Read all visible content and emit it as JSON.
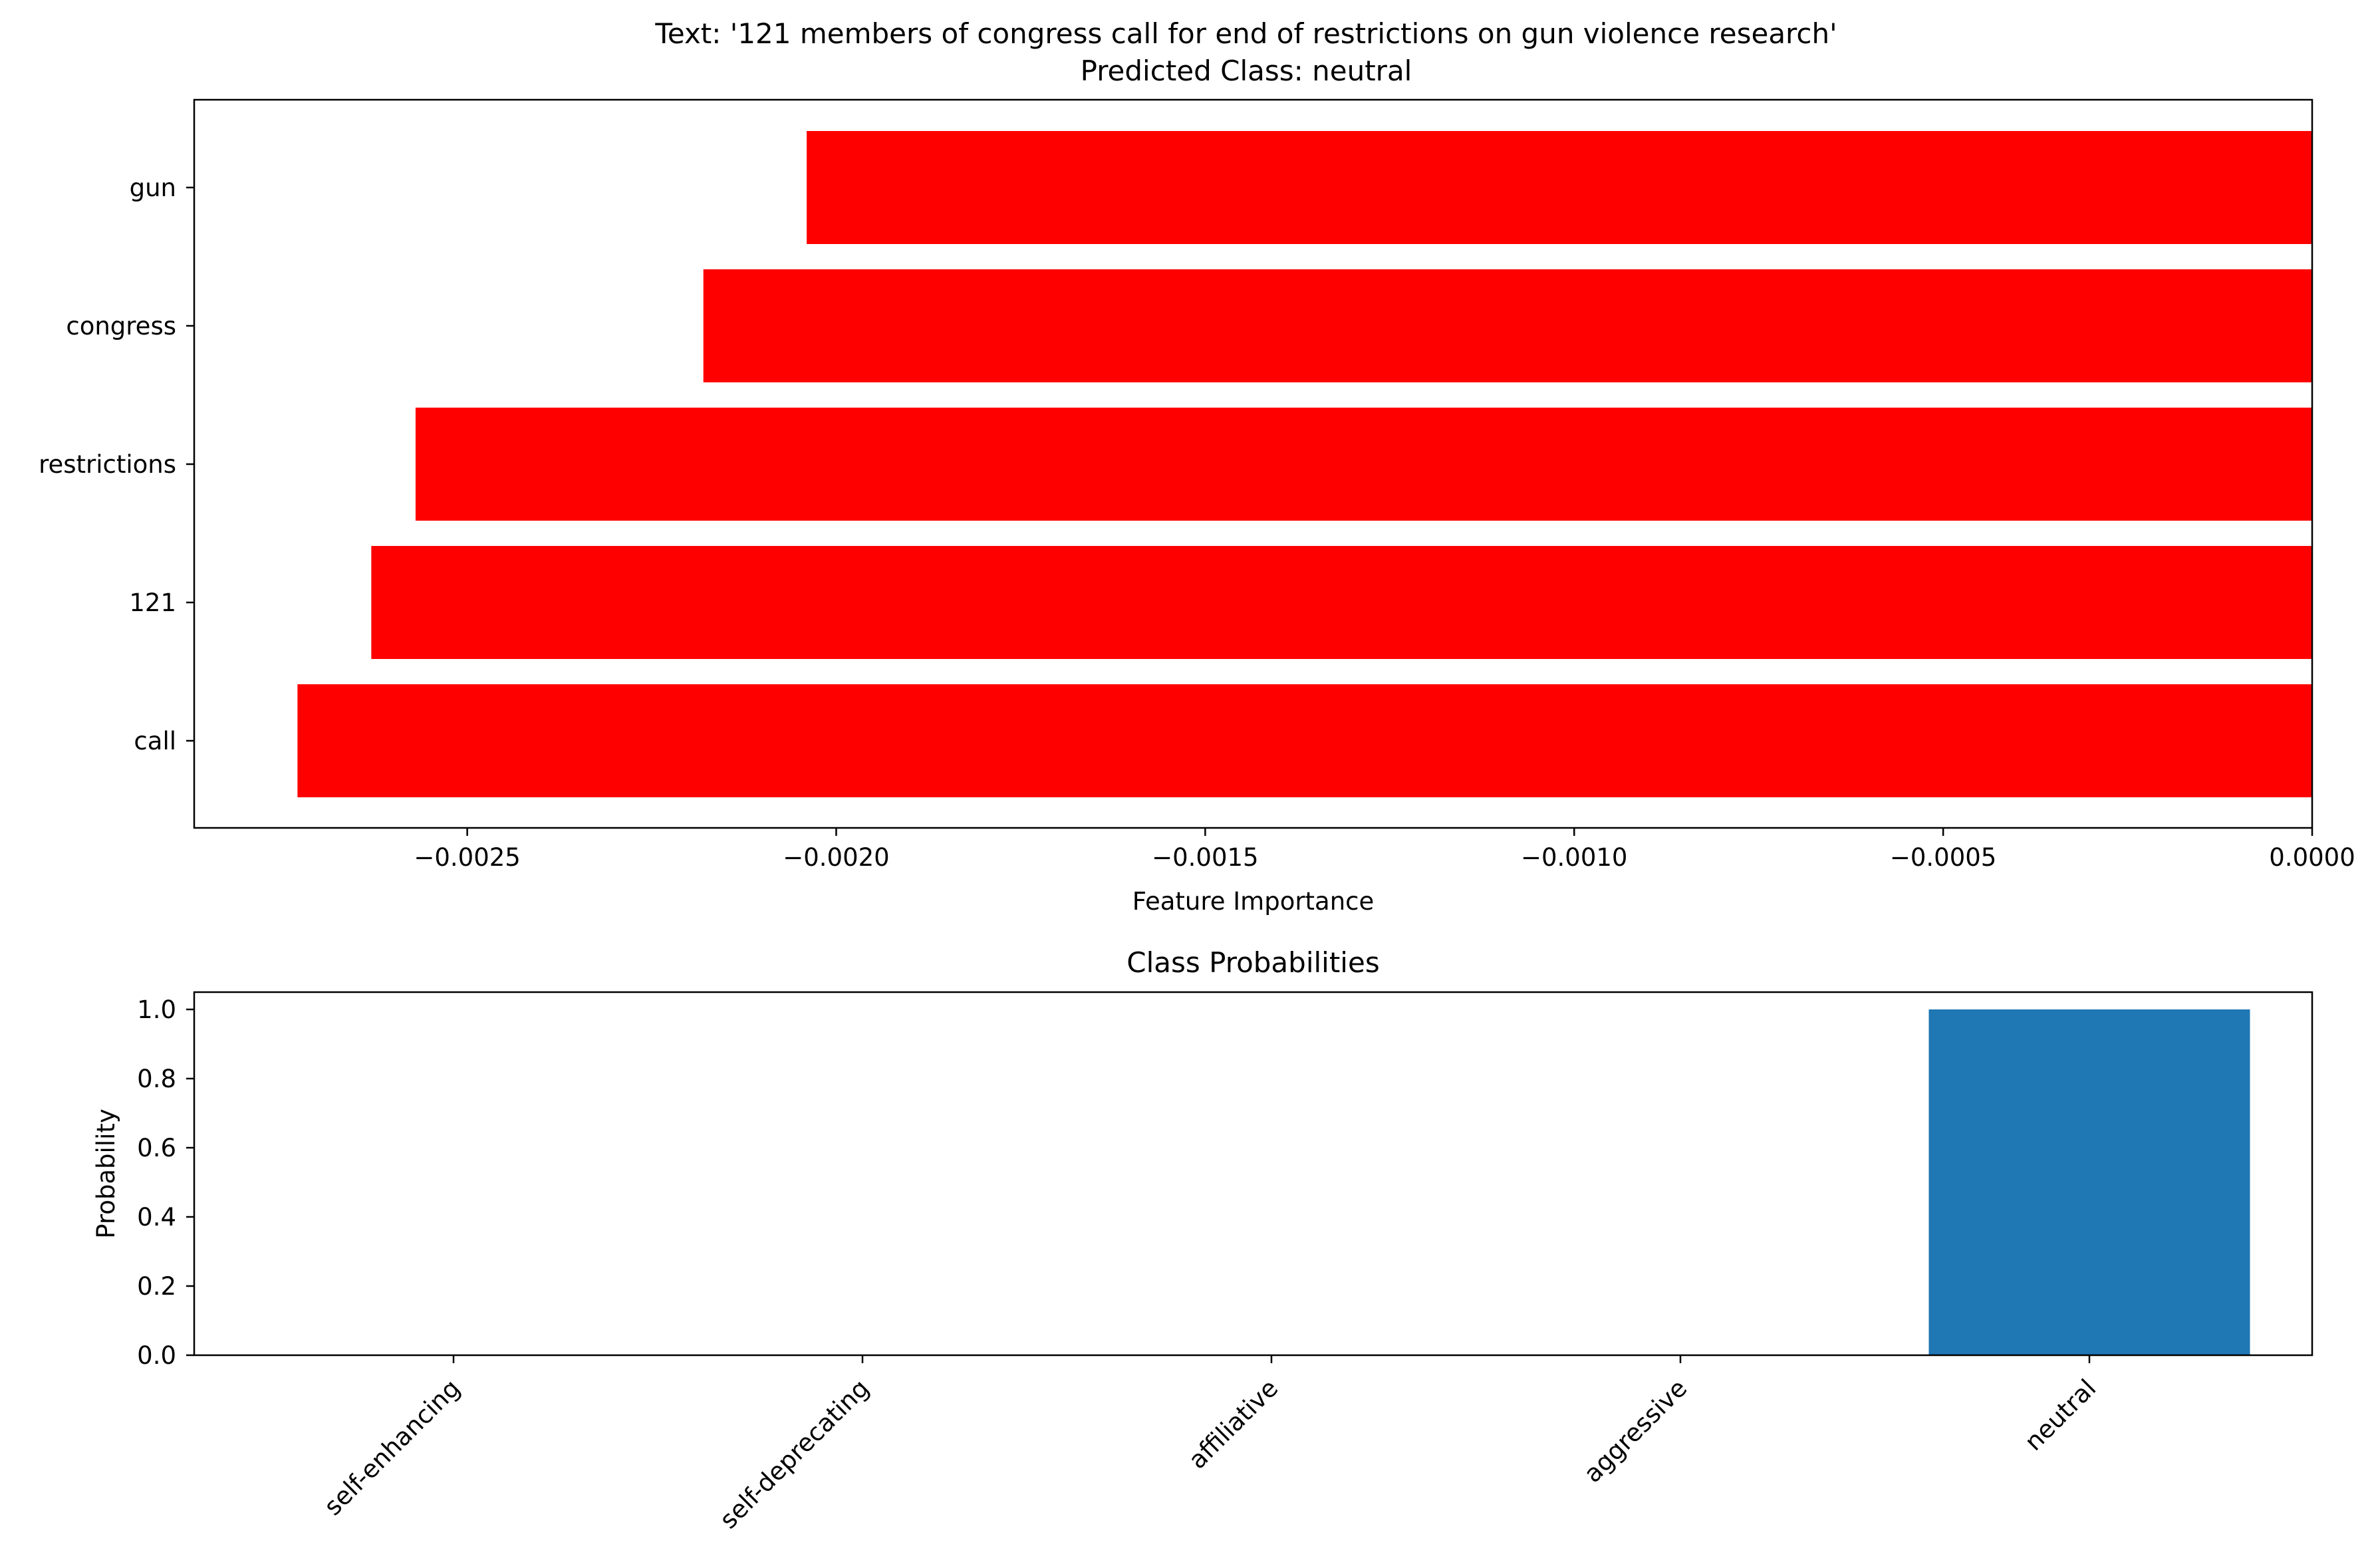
{
  "figure": {
    "title_line1": "Text: '121 members of congress call for end of restrictions on gun violence research'",
    "title_line2": "Predicted Class: neutral"
  },
  "chart_data": [
    {
      "type": "bar",
      "orientation": "horizontal",
      "title": "",
      "xlabel": "Feature Importance",
      "ylabel": "",
      "categories": [
        "call",
        "121",
        "restrictions",
        "congress",
        "gun"
      ],
      "values": [
        -0.00273,
        -0.00263,
        -0.00257,
        -0.00218,
        -0.00204
      ],
      "bar_color": "#ff0000",
      "xlim": [
        -0.00287,
        0.0
      ],
      "xticks": [
        -0.0025,
        -0.002,
        -0.0015,
        -0.001,
        -0.0005,
        0.0
      ],
      "xtick_labels": [
        "−0.0025",
        "−0.0020",
        "−0.0015",
        "−0.0010",
        "−0.0005",
        "0.0000"
      ],
      "grid": false
    },
    {
      "type": "bar",
      "orientation": "vertical",
      "title": "Class Probabilities",
      "xlabel": "",
      "ylabel": "Probability",
      "categories": [
        "self-enhancing",
        "self-deprecating",
        "affiliative",
        "aggressive",
        "neutral"
      ],
      "values": [
        0.0,
        0.0,
        0.0,
        0.0,
        1.0
      ],
      "bar_color": "#1f77b4",
      "ylim": [
        0.0,
        1.05
      ],
      "yticks": [
        0.0,
        0.2,
        0.4,
        0.6,
        0.8,
        1.0
      ],
      "ytick_labels": [
        "0.0",
        "0.2",
        "0.4",
        "0.6",
        "0.8",
        "1.0"
      ],
      "grid": false
    }
  ]
}
